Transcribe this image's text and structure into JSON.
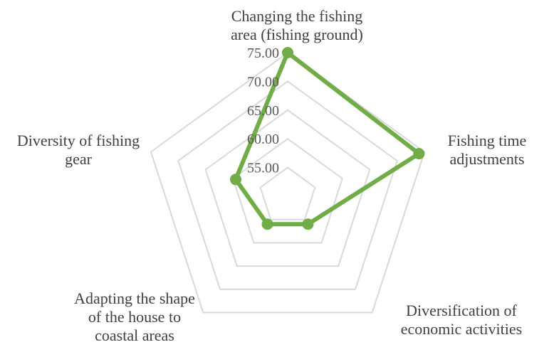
{
  "chart_data": {
    "type": "radar",
    "categories": [
      "Changing the fishing area (fishing ground)",
      "Fishing time adjustments",
      "Diversification of economic activities",
      "Adapting the shape of the house to coastal areas",
      "Diversity of fishing gear"
    ],
    "category_lines": [
      [
        "Changing the fishing",
        "area (fishing ground)"
      ],
      [
        "Fishing time",
        "adjustments"
      ],
      [
        "Diversification of",
        "economic activities"
      ],
      [
        "Adapting the shape",
        "of the house to",
        "coastal areas"
      ],
      [
        "Diversity of fishing",
        "gear"
      ]
    ],
    "ticks": [
      "55.00",
      "60.00",
      "65.00",
      "70.00",
      "75.00"
    ],
    "rlim": [
      50,
      75
    ],
    "series": [
      {
        "values": [
          75.0,
          74.0,
          56.0,
          56.0,
          59.5
        ],
        "color": "#70AD47"
      }
    ],
    "grid_color": "#D9D9D9",
    "grid": true,
    "legend": "none"
  }
}
